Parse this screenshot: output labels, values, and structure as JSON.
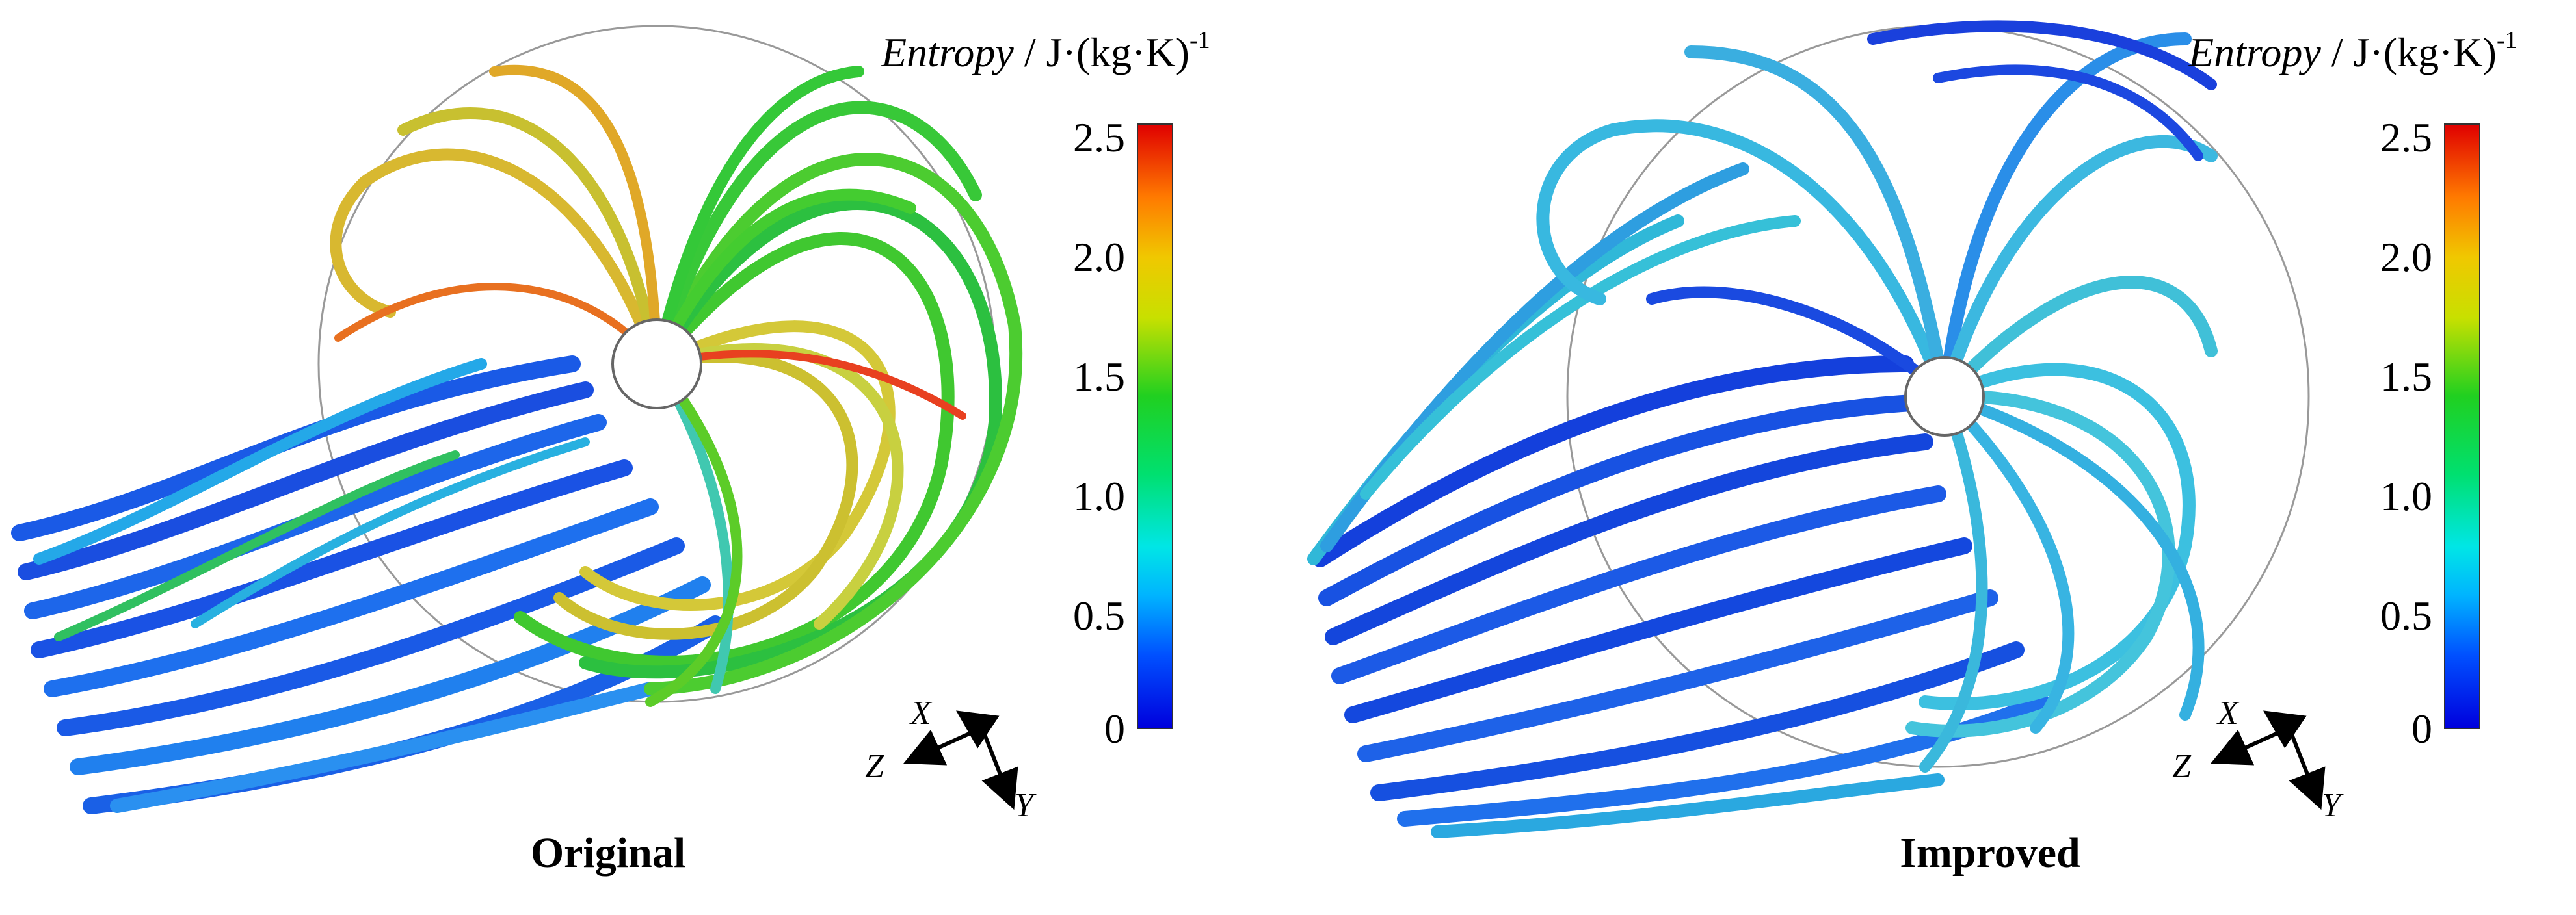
{
  "legend": {
    "title_italic": "Entropy",
    "title_rest": " / J·(kg·K)",
    "title_exponent": "-1",
    "ticks": [
      "2.5",
      "2.0",
      "1.5",
      "1.0",
      "0.5",
      "0"
    ]
  },
  "axes": {
    "x": "X",
    "y": "Y",
    "z": "Z"
  },
  "panels": [
    {
      "caption": "Original"
    },
    {
      "caption": "Improved"
    }
  ],
  "colors": {
    "blue": "#1450e0",
    "deep_blue": "#0a2ad8",
    "cyan": "#20b8e8",
    "green": "#30c830",
    "yellow": "#d8c830",
    "red": "#e02010"
  }
}
